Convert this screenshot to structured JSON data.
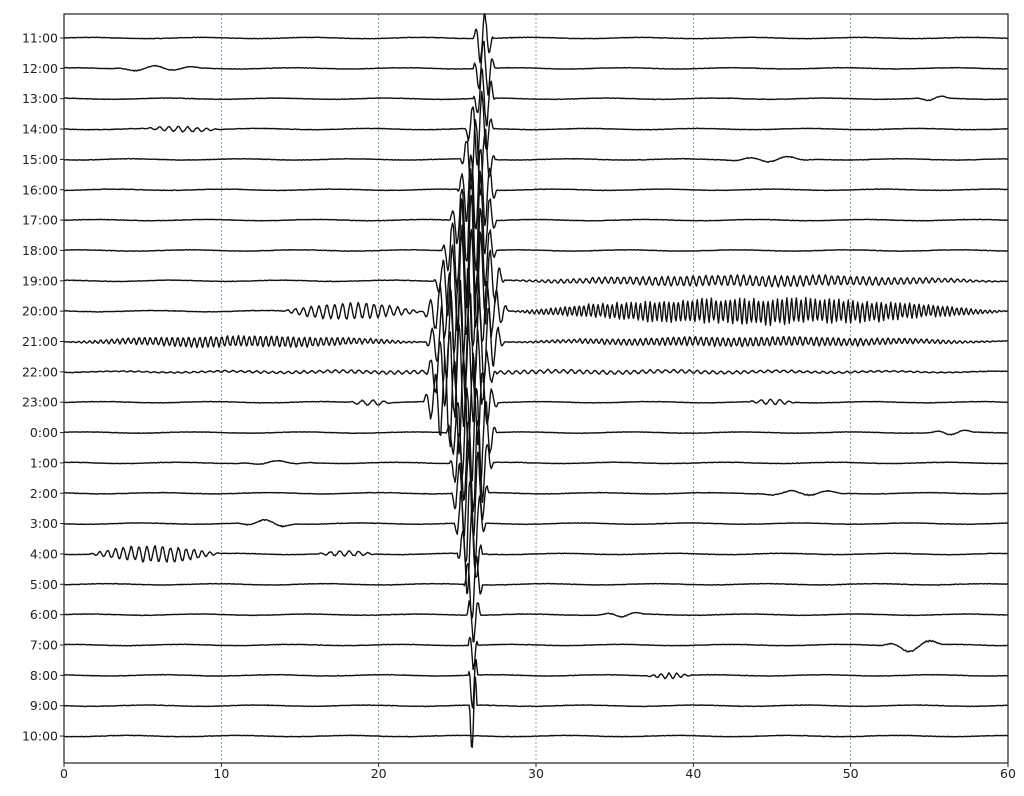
{
  "chart_data": {
    "type": "line",
    "title": "",
    "xlabel": "",
    "ylabel": "",
    "xlim": [
      0,
      60
    ],
    "x_ticks": [
      0,
      10,
      20,
      30,
      40,
      50,
      60
    ],
    "grid": "vertical dashed at x ticks",
    "trace_color": "#111111",
    "grid_color": "#6a8fa8",
    "rows": [
      {
        "label": "11:00",
        "events": [
          {
            "t": 26.0,
            "dur": 1.3,
            "amp": 30,
            "period": 0.6
          }
        ]
      },
      {
        "label": "12:00",
        "events": [
          {
            "t": 3.0,
            "dur": 6.0,
            "amp": 3,
            "period": 2.5
          },
          {
            "t": 26.0,
            "dur": 1.4,
            "amp": 32,
            "period": 0.6
          }
        ]
      },
      {
        "label": "13:00",
        "events": [
          {
            "t": 26.0,
            "dur": 1.4,
            "amp": 34,
            "period": 0.6
          },
          {
            "t": 54.0,
            "dur": 2.5,
            "amp": 3,
            "period": 2.0
          }
        ]
      },
      {
        "label": "14:00",
        "events": [
          {
            "t": 5.0,
            "dur": 5.0,
            "amp": 3,
            "period": 0.6
          },
          {
            "t": 25.5,
            "dur": 1.8,
            "amp": 40,
            "period": 0.6
          }
        ]
      },
      {
        "label": "15:00",
        "events": [
          {
            "t": 25.2,
            "dur": 2.2,
            "amp": 45,
            "period": 0.6
          },
          {
            "t": 42.0,
            "dur": 6.0,
            "amp": 3,
            "period": 2.5
          }
        ]
      },
      {
        "label": "16:00",
        "events": [
          {
            "t": 25.0,
            "dur": 2.5,
            "amp": 52,
            "period": 0.6
          }
        ]
      },
      {
        "label": "17:00",
        "events": [
          {
            "t": 24.5,
            "dur": 3.0,
            "amp": 58,
            "period": 0.6
          }
        ]
      },
      {
        "label": "18:00",
        "events": [
          {
            "t": 24.0,
            "dur": 3.5,
            "amp": 62,
            "period": 0.6
          }
        ]
      },
      {
        "label": "19:00",
        "events": [
          {
            "t": 23.5,
            "dur": 4.5,
            "amp": 60,
            "period": 0.6
          },
          {
            "t": 28.0,
            "dur": 32.0,
            "amp": 6,
            "period": 0.4
          }
        ]
      },
      {
        "label": "20:00",
        "events": [
          {
            "t": 13.8,
            "dur": 9.0,
            "amp": 9,
            "period": 0.5
          },
          {
            "t": 22.8,
            "dur": 5.5,
            "amp": 48,
            "period": 0.6
          },
          {
            "t": 28.3,
            "dur": 31.7,
            "amp": 14,
            "period": 0.3
          }
        ]
      },
      {
        "label": "21:00",
        "events": [
          {
            "t": 0.0,
            "dur": 23.0,
            "amp": 6,
            "period": 0.35
          },
          {
            "t": 23.0,
            "dur": 5.0,
            "amp": 62,
            "period": 0.6
          },
          {
            "t": 28.0,
            "dur": 32.0,
            "amp": 5,
            "period": 0.35
          }
        ]
      },
      {
        "label": "22:00",
        "events": [
          {
            "t": 0.0,
            "dur": 60.0,
            "amp": 2,
            "period": 0.5
          },
          {
            "t": 23.0,
            "dur": 4.5,
            "amp": 58,
            "period": 0.6
          }
        ]
      },
      {
        "label": "23:00",
        "events": [
          {
            "t": 18.0,
            "dur": 3.0,
            "amp": 3,
            "period": 0.7
          },
          {
            "t": 22.8,
            "dur": 4.8,
            "amp": 58,
            "period": 0.6
          },
          {
            "t": 43.5,
            "dur": 3.0,
            "amp": 3,
            "period": 0.6
          }
        ]
      },
      {
        "label": "0:00",
        "events": [
          {
            "t": 24.3,
            "dur": 3.2,
            "amp": 60,
            "period": 0.6
          },
          {
            "t": 55.0,
            "dur": 3.0,
            "amp": 3,
            "period": 2.0
          }
        ]
      },
      {
        "label": "1:00",
        "events": [
          {
            "t": 24.5,
            "dur": 2.8,
            "amp": 58,
            "period": 0.6
          },
          {
            "t": 11.0,
            "dur": 5.0,
            "amp": 2,
            "period": 2.5
          }
        ]
      },
      {
        "label": "2:00",
        "events": [
          {
            "t": 24.6,
            "dur": 2.4,
            "amp": 55,
            "period": 0.6
          },
          {
            "t": 44.0,
            "dur": 6.0,
            "amp": 3,
            "period": 2.5
          }
        ]
      },
      {
        "label": "3:00",
        "events": [
          {
            "t": 11.0,
            "dur": 4.0,
            "amp": 4,
            "period": 2.5
          },
          {
            "t": 24.8,
            "dur": 2.0,
            "amp": 55,
            "period": 0.6
          }
        ]
      },
      {
        "label": "4:00",
        "events": [
          {
            "t": 1.5,
            "dur": 8.5,
            "amp": 9,
            "period": 0.5
          },
          {
            "t": 16.0,
            "dur": 4.0,
            "amp": 3,
            "period": 0.6
          },
          {
            "t": 25.0,
            "dur": 1.6,
            "amp": 48,
            "period": 0.6
          }
        ]
      },
      {
        "label": "5:00",
        "events": [
          {
            "t": 25.4,
            "dur": 1.2,
            "amp": 40,
            "period": 0.6
          }
        ]
      },
      {
        "label": "6:00",
        "events": [
          {
            "t": 25.6,
            "dur": 0.9,
            "amp": 30,
            "period": 0.6
          },
          {
            "t": 34.0,
            "dur": 3.0,
            "amp": 3,
            "period": 2.0
          }
        ]
      },
      {
        "label": "7:00",
        "events": [
          {
            "t": 25.7,
            "dur": 0.6,
            "amp": 28,
            "period": 0.6
          },
          {
            "t": 52.0,
            "dur": 4.0,
            "amp": 7,
            "period": 3.0
          }
        ]
      },
      {
        "label": "8:00",
        "events": [
          {
            "t": 37.0,
            "dur": 3.0,
            "amp": 3,
            "period": 0.5
          },
          {
            "t": 25.7,
            "dur": 0.6,
            "amp": 40,
            "period": 0.6
          }
        ]
      },
      {
        "label": "9:00",
        "events": [
          {
            "t": 25.75,
            "dur": 0.5,
            "amp": 55,
            "period": 0.6
          }
        ]
      },
      {
        "label": "10:00",
        "events": []
      }
    ]
  }
}
